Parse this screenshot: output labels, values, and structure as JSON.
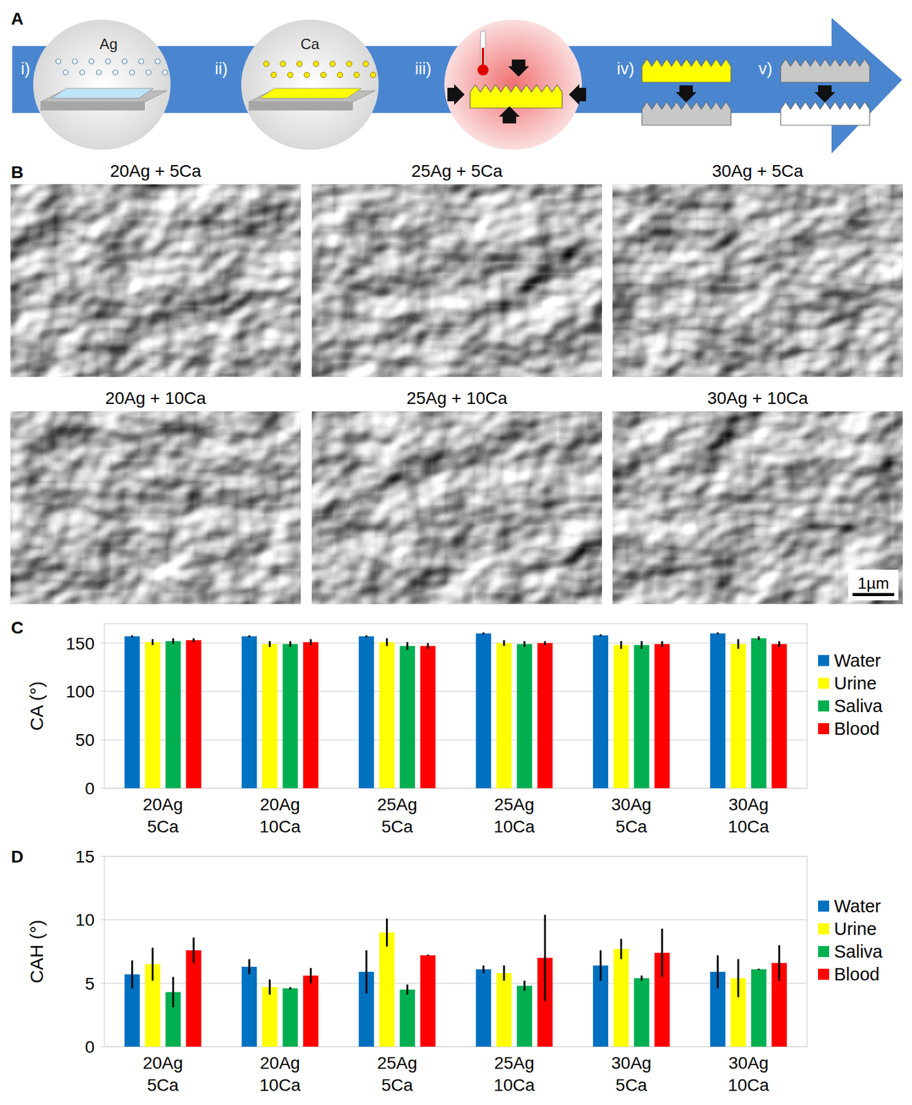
{
  "panel_labels": [
    "A",
    "B",
    "C",
    "D"
  ],
  "schematic": {
    "steps": [
      "i)",
      "ii)",
      "iii)",
      "iv)",
      "v)"
    ],
    "elements": [
      "Ag",
      "Ca"
    ]
  },
  "micrographs": {
    "titles": [
      "20Ag + 5Ca",
      "25Ag + 5Ca",
      "30Ag + 5Ca",
      "20Ag + 10Ca",
      "25Ag + 10Ca",
      "30Ag + 10Ca"
    ],
    "scale_bar": "1µm"
  },
  "chart_data": [
    {
      "type": "bar",
      "y_label": "CA (°)",
      "categories": [
        "20Ag\n5Ca",
        "20Ag\n10Ca",
        "25Ag\n5Ca",
        "25Ag\n10Ca",
        "30Ag\n5Ca",
        "30Ag\n10Ca"
      ],
      "series": [
        {
          "name": "Water",
          "color": "#0070c0",
          "values": [
            157,
            157,
            157,
            160,
            158,
            160
          ],
          "errors": [
            1,
            1,
            1,
            1,
            1,
            1
          ]
        },
        {
          "name": "Urine",
          "color": "#ffff00",
          "values": [
            151,
            149,
            151,
            150,
            148,
            149
          ],
          "errors": [
            3,
            3,
            4,
            3,
            4,
            5
          ]
        },
        {
          "name": "Saliva",
          "color": "#00b050",
          "values": [
            152,
            149,
            147,
            149,
            148,
            155
          ],
          "errors": [
            3,
            3,
            4,
            3,
            4,
            2
          ]
        },
        {
          "name": "Blood",
          "color": "#ff0000",
          "values": [
            153,
            151,
            147,
            150,
            149,
            149
          ],
          "errors": [
            2,
            3,
            3,
            2,
            3,
            3
          ]
        }
      ],
      "ylim": [
        0,
        170
      ],
      "yticks": [
        0,
        50,
        100,
        150
      ],
      "grid": true,
      "legend": "right"
    },
    {
      "type": "bar",
      "y_label": "CAH (°)",
      "categories": [
        "20Ag\n5Ca",
        "20Ag\n10Ca",
        "25Ag\n5Ca",
        "25Ag\n10Ca",
        "30Ag\n5Ca",
        "30Ag\n10Ca"
      ],
      "series": [
        {
          "name": "Water",
          "color": "#0070c0",
          "values": [
            5.7,
            6.3,
            5.9,
            6.1,
            6.4,
            5.9
          ],
          "errors": [
            1.1,
            0.6,
            1.7,
            0.3,
            1.2,
            1.3
          ]
        },
        {
          "name": "Urine",
          "color": "#ffff00",
          "values": [
            6.5,
            4.7,
            9.0,
            5.8,
            7.7,
            5.4
          ],
          "errors": [
            1.3,
            0.6,
            1.1,
            0.6,
            0.8,
            1.5
          ]
        },
        {
          "name": "Saliva",
          "color": "#00b050",
          "values": [
            4.3,
            4.6,
            4.5,
            4.8,
            5.4,
            6.1
          ],
          "errors": [
            1.2,
            0.1,
            0.4,
            0.4,
            0.2,
            0.05
          ]
        },
        {
          "name": "Blood",
          "color": "#ff0000",
          "values": [
            7.6,
            5.6,
            7.2,
            7.0,
            7.4,
            6.6
          ],
          "errors": [
            1.0,
            0.6,
            0.05,
            3.4,
            1.9,
            1.4
          ]
        }
      ],
      "ylim": [
        0,
        15
      ],
      "yticks": [
        0,
        5,
        10,
        15
      ],
      "grid": true,
      "legend": "right"
    }
  ]
}
